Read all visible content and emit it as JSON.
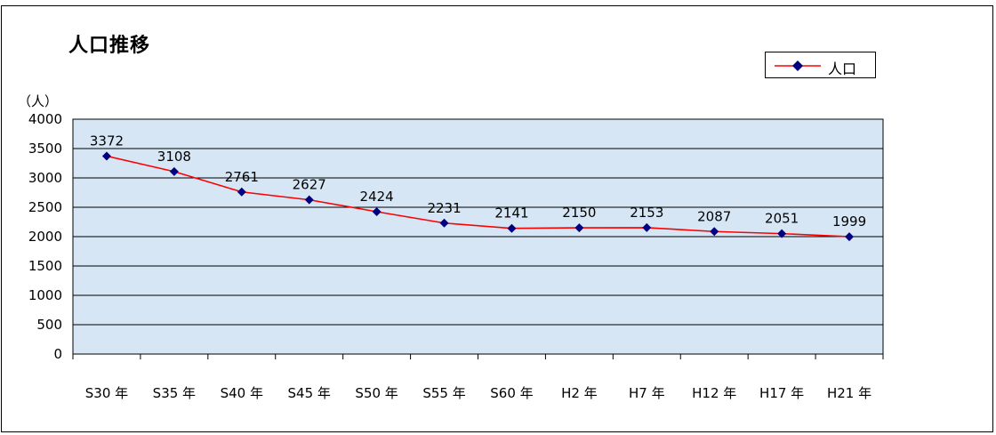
{
  "chart_data": {
    "type": "line",
    "title": "人口推移",
    "ylabel": "（人）",
    "xlabel": "",
    "categories": [
      "S30 年",
      "S35 年",
      "S40 年",
      "S45 年",
      "S50 年",
      "S55 年",
      "S60 年",
      "H2 年",
      "H7 年",
      "H12 年",
      "H17 年",
      "H21 年"
    ],
    "series": [
      {
        "name": "人口",
        "values": [
          3372,
          3108,
          2761,
          2627,
          2424,
          2231,
          2141,
          2150,
          2153,
          2087,
          2051,
          1999
        ],
        "color": "#ff0000",
        "marker_color": "#000080"
      }
    ],
    "ylim": [
      0,
      4000
    ],
    "yticks": [
      0,
      500,
      1000,
      1500,
      2000,
      2500,
      3000,
      3500,
      4000
    ],
    "grid": true,
    "legend_position": "top-right",
    "plot_background": "#d6e6f5"
  }
}
